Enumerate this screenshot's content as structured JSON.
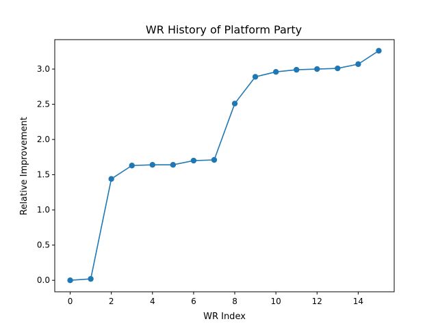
{
  "chart_data": {
    "type": "line",
    "title": "WR History of Platform Party",
    "xlabel": "WR Index",
    "ylabel": "Relative Improvement",
    "xlim": [
      -0.75,
      15.75
    ],
    "ylim": [
      -0.163,
      3.418
    ],
    "xticks": [
      0,
      2,
      4,
      6,
      8,
      10,
      12,
      14
    ],
    "xtick_labels": [
      "0",
      "2",
      "4",
      "6",
      "8",
      "10",
      "12",
      "14"
    ],
    "yticks": [
      0.0,
      0.5,
      1.0,
      1.5,
      2.0,
      2.5,
      3.0
    ],
    "ytick_labels": [
      "0.0",
      "0.5",
      "1.0",
      "1.5",
      "2.0",
      "2.5",
      "3.0"
    ],
    "grid": false,
    "series": [
      {
        "color": "#1f77b4",
        "marker": "circle",
        "x": [
          0,
          1,
          2,
          3,
          4,
          5,
          6,
          7,
          8,
          9,
          10,
          11,
          12,
          13,
          14,
          15
        ],
        "y": [
          0.0,
          0.02,
          1.44,
          1.63,
          1.64,
          1.64,
          1.7,
          1.71,
          2.51,
          2.89,
          2.96,
          2.99,
          3.0,
          3.01,
          3.07,
          3.26
        ]
      }
    ]
  }
}
